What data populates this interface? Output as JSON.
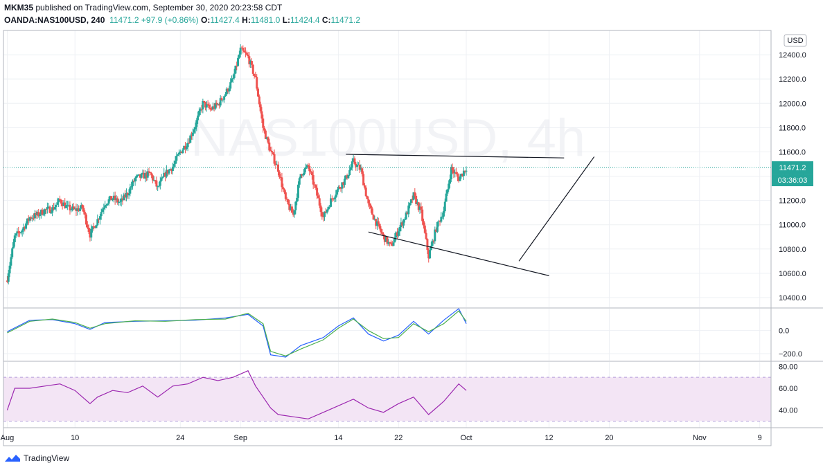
{
  "header": {
    "publisher": "MKM35",
    "published_text": "published on TradingView.com, September 30, 2020 20:23:58 CDT",
    "symbol": "OANDA:NAS100USD, 240",
    "last": "11471.2",
    "change": "+97.9 (+0.86%)",
    "o_label": "O:",
    "o_value": "11427.4",
    "h_label": "H:",
    "h_value": "11481.0",
    "l_label": "L:",
    "l_value": "11424.4",
    "c_label": "C:",
    "c_value": "11471.2"
  },
  "watermark": "NAS100USD, 4h",
  "currency": "USD",
  "price_label": "11471.2",
  "countdown": "03:36:03",
  "footer": {
    "brand": "TradingView"
  },
  "colors": {
    "up": "#26a69a",
    "down": "#ef5350",
    "macd": "#2962ff",
    "signal": "#4caf50",
    "rsi": "#9c27b0",
    "rsi_band": "#f3e5f5"
  },
  "chart_data": [
    {
      "type": "candlestick",
      "symbol": "NAS100USD",
      "timeframe": "4h",
      "y_ticks": [
        10400,
        10600,
        10800,
        11000,
        11200,
        11400,
        11600,
        11800,
        12000,
        12200,
        12400
      ],
      "y_tick_labels": [
        "10400.0",
        "10600.0",
        "10800.0",
        "11000.0",
        "11200.0",
        "11400.0",
        "11600.0",
        "11800.0",
        "12000.0",
        "12200.0",
        "12400.0"
      ],
      "ylim": [
        10320,
        12600
      ],
      "x_ticks": [
        "Aug",
        "10",
        "24",
        "Sep",
        "14",
        "22",
        "Oct",
        "12",
        "20",
        "Nov",
        "9"
      ],
      "x_tick_days": [
        0,
        9,
        23,
        31,
        44,
        52,
        61,
        72,
        80,
        92,
        100
      ],
      "close_path": [
        [
          0,
          10560
        ],
        [
          1,
          10900
        ],
        [
          2,
          10960
        ],
        [
          3,
          11060
        ],
        [
          4,
          11080
        ],
        [
          5,
          11120
        ],
        [
          6,
          11130
        ],
        [
          7,
          11200
        ],
        [
          8,
          11140
        ],
        [
          9,
          11120
        ],
        [
          10,
          11140
        ],
        [
          11,
          10920
        ],
        [
          12,
          11040
        ],
        [
          13,
          11180
        ],
        [
          14,
          11220
        ],
        [
          15,
          11180
        ],
        [
          16,
          11260
        ],
        [
          17,
          11380
        ],
        [
          18,
          11400
        ],
        [
          19,
          11420
        ],
        [
          20,
          11300
        ],
        [
          21,
          11420
        ],
        [
          22,
          11480
        ],
        [
          23,
          11600
        ],
        [
          24,
          11680
        ],
        [
          25,
          11820
        ],
        [
          26,
          12000
        ],
        [
          27,
          11950
        ],
        [
          28,
          11990
        ],
        [
          29,
          12080
        ],
        [
          30,
          12200
        ],
        [
          31,
          12440
        ],
        [
          32,
          12380
        ],
        [
          33,
          12200
        ],
        [
          34,
          11800
        ],
        [
          35,
          11600
        ],
        [
          36,
          11460
        ],
        [
          37,
          11200
        ],
        [
          38,
          11080
        ],
        [
          39,
          11420
        ],
        [
          40,
          11480
        ],
        [
          41,
          11280
        ],
        [
          42,
          11060
        ],
        [
          43,
          11200
        ],
        [
          44,
          11300
        ],
        [
          45,
          11380
        ],
        [
          46,
          11520
        ],
        [
          47,
          11450
        ],
        [
          48,
          11160
        ],
        [
          49,
          11020
        ],
        [
          50,
          10900
        ],
        [
          51,
          10820
        ],
        [
          52,
          10960
        ],
        [
          53,
          11080
        ],
        [
          54,
          11240
        ],
        [
          55,
          11100
        ],
        [
          56,
          10740
        ],
        [
          57,
          10970
        ],
        [
          58,
          11120
        ],
        [
          59,
          11460
        ],
        [
          60,
          11380
        ],
        [
          61,
          11471
        ]
      ],
      "trendlines": [
        {
          "from": [
            45,
            11580
          ],
          "to": [
            74,
            11550
          ]
        },
        {
          "from": [
            48,
            10940
          ],
          "to": [
            72,
            10580
          ]
        },
        {
          "from": [
            68,
            10700
          ],
          "to": [
            78,
            11560
          ]
        }
      ]
    },
    {
      "type": "line",
      "name": "MACD",
      "y_ticks": [
        0,
        -200
      ],
      "y_tick_labels": [
        "0.0",
        "−200.0"
      ],
      "ylim": [
        -260,
        190
      ],
      "series": [
        {
          "color": "#2962ff",
          "values": [
            [
              0,
              -10
            ],
            [
              3,
              90
            ],
            [
              6,
              95
            ],
            [
              9,
              60
            ],
            [
              11,
              10
            ],
            [
              13,
              70
            ],
            [
              17,
              80
            ],
            [
              21,
              85
            ],
            [
              25,
              90
            ],
            [
              29,
              110
            ],
            [
              32,
              140
            ],
            [
              34,
              40
            ],
            [
              35,
              -210
            ],
            [
              37,
              -230
            ],
            [
              39,
              -130
            ],
            [
              42,
              -60
            ],
            [
              44,
              40
            ],
            [
              46,
              110
            ],
            [
              48,
              -30
            ],
            [
              50,
              -90
            ],
            [
              52,
              -40
            ],
            [
              54,
              80
            ],
            [
              56,
              -30
            ],
            [
              58,
              90
            ],
            [
              60,
              190
            ],
            [
              61,
              60
            ]
          ]
        },
        {
          "color": "#4caf50",
          "values": [
            [
              0,
              -20
            ],
            [
              3,
              80
            ],
            [
              6,
              100
            ],
            [
              9,
              70
            ],
            [
              11,
              20
            ],
            [
              13,
              60
            ],
            [
              17,
              85
            ],
            [
              21,
              80
            ],
            [
              25,
              95
            ],
            [
              29,
              100
            ],
            [
              32,
              150
            ],
            [
              34,
              60
            ],
            [
              35,
              -180
            ],
            [
              37,
              -220
            ],
            [
              39,
              -160
            ],
            [
              42,
              -80
            ],
            [
              44,
              20
            ],
            [
              46,
              100
            ],
            [
              48,
              0
            ],
            [
              50,
              -70
            ],
            [
              52,
              -60
            ],
            [
              54,
              60
            ],
            [
              56,
              -10
            ],
            [
              58,
              60
            ],
            [
              60,
              170
            ],
            [
              61,
              80
            ]
          ]
        }
      ]
    },
    {
      "type": "line",
      "name": "RSI",
      "y_ticks": [
        80,
        60,
        40
      ],
      "y_tick_labels": [
        "80.00",
        "60.00",
        "40.00"
      ],
      "band": [
        30,
        70
      ],
      "ylim": [
        24,
        84
      ],
      "values": [
        [
          0,
          40
        ],
        [
          1,
          60
        ],
        [
          3,
          60
        ],
        [
          5,
          62
        ],
        [
          7,
          64
        ],
        [
          9,
          58
        ],
        [
          11,
          46
        ],
        [
          12,
          52
        ],
        [
          14,
          58
        ],
        [
          16,
          56
        ],
        [
          18,
          62
        ],
        [
          20,
          52
        ],
        [
          22,
          62
        ],
        [
          24,
          64
        ],
        [
          26,
          70
        ],
        [
          28,
          67
        ],
        [
          30,
          70
        ],
        [
          32,
          76
        ],
        [
          33,
          62
        ],
        [
          34,
          52
        ],
        [
          35,
          42
        ],
        [
          36,
          36
        ],
        [
          38,
          34
        ],
        [
          40,
          32
        ],
        [
          42,
          38
        ],
        [
          44,
          44
        ],
        [
          46,
          50
        ],
        [
          48,
          42
        ],
        [
          50,
          38
        ],
        [
          52,
          46
        ],
        [
          54,
          52
        ],
        [
          56,
          36
        ],
        [
          58,
          48
        ],
        [
          60,
          64
        ],
        [
          61,
          58
        ]
      ]
    }
  ]
}
